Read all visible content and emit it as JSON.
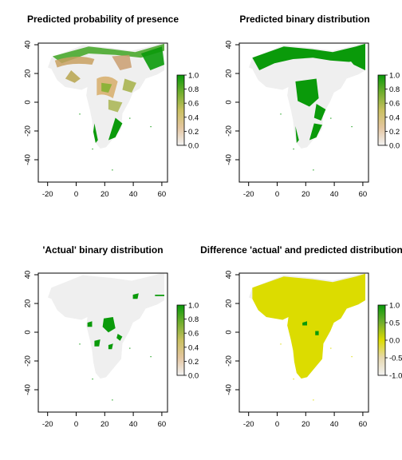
{
  "colors": {
    "land_background": "#efefef",
    "presence_green": "#0a9a0a",
    "mid_olive": "#8eb23a",
    "low_tan": "#d8b890",
    "difference_yellow": "#dcdc00"
  },
  "axes": {
    "x_ticks": [
      "-20",
      "0",
      "20",
      "40",
      "60"
    ],
    "y_ticks": [
      "40",
      "20",
      "0",
      "-20",
      "-40"
    ]
  },
  "panels": [
    {
      "title": "Predicted probability of presence",
      "legend_ticks": [
        "1.0",
        "0.8",
        "0.6",
        "0.4",
        "0.2",
        "0.0"
      ],
      "legend_type": "probability"
    },
    {
      "title": "Predicted binary distribution",
      "legend_ticks": [
        "1.0",
        "0.8",
        "0.6",
        "0.4",
        "0.2",
        "0.0"
      ],
      "legend_type": "probability"
    },
    {
      "title": "'Actual' binary distribution",
      "legend_ticks": [
        "1.0",
        "0.8",
        "0.6",
        "0.4",
        "0.2",
        "0.0"
      ],
      "legend_type": "probability"
    },
    {
      "title": "Difference 'actual' and predicted distribution",
      "legend_ticks": [
        "1.0",
        "0.5",
        "0.0",
        "-0.5",
        "-1.0"
      ],
      "legend_type": "difference"
    }
  ]
}
